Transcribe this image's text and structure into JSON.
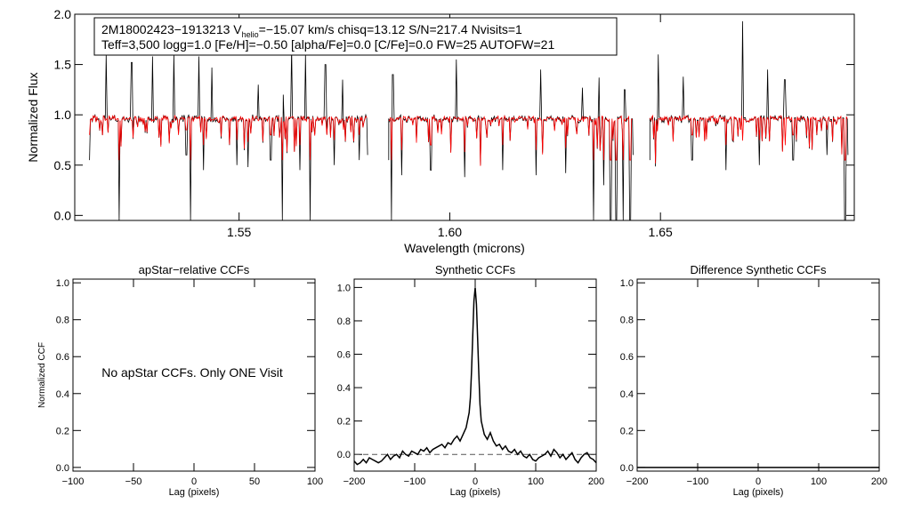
{
  "chart_data": [
    {
      "type": "line",
      "panel": "spectrum",
      "xlabel": "Wavelength (microns)",
      "ylabel": "Normalized Flux",
      "xlim": [
        1.511,
        1.696
      ],
      "ylim": [
        -0.05,
        2.0
      ],
      "x_ticks": [
        "1.55",
        "1.60",
        "1.65"
      ],
      "x_tick_values": [
        1.55,
        1.6,
        1.65
      ],
      "y_ticks": [
        "0.0",
        "0.5",
        "1.0",
        "1.5",
        "2.0"
      ],
      "y_tick_values": [
        0.0,
        0.5,
        1.0,
        1.5,
        2.0
      ],
      "info_line1_prefix": "2M18002423−1913213  V",
      "info_line1_sub": "helio",
      "info_line1_suffix": "=−15.07 km/s  chisq=13.12  S/N=217.4  Nvisits=1",
      "info_line2": "Teff=3,500 logg=1.0 [Fe/H]=−0.50 [alpha/Fe]=0.0 [C/Fe]=0.0 FW=25 AUTOFW=21",
      "chips": [
        [
          1.5145,
          1.5805
        ],
        [
          1.5855,
          1.6435
        ],
        [
          1.6475,
          1.6945
        ]
      ],
      "series": [
        {
          "name": "observed",
          "color": "#000000"
        },
        {
          "name": "model",
          "color": "#ff0000"
        }
      ],
      "spikes": [
        {
          "x": 1.5185,
          "y": 1.6
        },
        {
          "x": 1.5245,
          "y": 1.52
        },
        {
          "x": 1.5295,
          "y": 1.58
        },
        {
          "x": 1.5345,
          "y": 1.6
        },
        {
          "x": 1.5405,
          "y": 1.58
        },
        {
          "x": 1.5435,
          "y": 1.47
        },
        {
          "x": 1.5545,
          "y": 1.3
        },
        {
          "x": 1.5575,
          "y": 1.35
        },
        {
          "x": 1.5605,
          "y": 1.2
        },
        {
          "x": 1.5625,
          "y": 1.68
        },
        {
          "x": 1.5658,
          "y": 1.6
        },
        {
          "x": 1.5705,
          "y": 1.5
        },
        {
          "x": 1.5745,
          "y": 1.35
        },
        {
          "x": 1.5865,
          "y": 1.4
        },
        {
          "x": 1.6015,
          "y": 1.55
        },
        {
          "x": 1.6215,
          "y": 1.45
        },
        {
          "x": 1.6315,
          "y": 1.27
        },
        {
          "x": 1.6355,
          "y": 1.37
        },
        {
          "x": 1.6395,
          "y": 1.97
        },
        {
          "x": 1.6415,
          "y": 1.25
        },
        {
          "x": 1.6495,
          "y": 1.6
        },
        {
          "x": 1.6555,
          "y": 1.38
        },
        {
          "x": 1.6695,
          "y": 1.93
        },
        {
          "x": 1.6755,
          "y": 1.45
        },
        {
          "x": 1.6795,
          "y": 1.35
        },
        {
          "x": 1.6895,
          "y": 2.0
        }
      ],
      "dips": [
        {
          "x": 1.5145,
          "y": 0.55
        },
        {
          "x": 1.5215,
          "y": -0.05
        },
        {
          "x": 1.5375,
          "y": 0.6
        },
        {
          "x": 1.5385,
          "y": -0.05
        },
        {
          "x": 1.5415,
          "y": 0.45
        },
        {
          "x": 1.5495,
          "y": 0.5
        },
        {
          "x": 1.5522,
          "y": 0.48
        },
        {
          "x": 1.5575,
          "y": 0.55
        },
        {
          "x": 1.5602,
          "y": -0.05
        },
        {
          "x": 1.5645,
          "y": 0.45
        },
        {
          "x": 1.5668,
          "y": -0.05
        },
        {
          "x": 1.5725,
          "y": 0.5
        },
        {
          "x": 1.5785,
          "y": 0.55
        },
        {
          "x": 1.5805,
          "y": -0.05
        },
        {
          "x": 1.5862,
          "y": -0.05
        },
        {
          "x": 1.5885,
          "y": 0.4
        },
        {
          "x": 1.5955,
          "y": 0.45
        },
        {
          "x": 1.6035,
          "y": 0.38
        },
        {
          "x": 1.6125,
          "y": 0.45
        },
        {
          "x": 1.6205,
          "y": 0.4
        },
        {
          "x": 1.6275,
          "y": 0.42
        },
        {
          "x": 1.6342,
          "y": -0.05
        },
        {
          "x": 1.6365,
          "y": 0.3
        },
        {
          "x": 1.6382,
          "y": -0.05
        },
        {
          "x": 1.6395,
          "y": -0.05
        },
        {
          "x": 1.6412,
          "y": -0.05
        },
        {
          "x": 1.6428,
          "y": -0.05
        },
        {
          "x": 1.6575,
          "y": 0.55
        },
        {
          "x": 1.6655,
          "y": 0.45
        },
        {
          "x": 1.6735,
          "y": 0.5
        },
        {
          "x": 1.6815,
          "y": 0.55
        },
        {
          "x": 1.6895,
          "y": 0.6
        },
        {
          "x": 1.6938,
          "y": -0.05
        }
      ]
    },
    {
      "type": "line",
      "panel": "apstar-ccf",
      "title": "apStar−relative CCFs",
      "xlabel": "Lag (pixels)",
      "ylabel": "Normalized CCF",
      "xlim": [
        -100,
        100
      ],
      "ylim": [
        -0.02,
        1.02
      ],
      "x_ticks": [
        "−100",
        "−50",
        "0",
        "50",
        "100"
      ],
      "x_tick_values": [
        -100,
        -50,
        0,
        50,
        100
      ],
      "y_ticks": [
        "0.0",
        "0.2",
        "0.4",
        "0.6",
        "0.8",
        "1.0"
      ],
      "y_tick_values": [
        0.0,
        0.2,
        0.4,
        0.6,
        0.8,
        1.0
      ],
      "annotation": "No apStar CCFs.  Only ONE Visit"
    },
    {
      "type": "line",
      "panel": "synthetic-ccf",
      "title": "Synthetic CCFs",
      "xlabel": "Lag (pixels)",
      "xlim": [
        -200,
        200
      ],
      "ylim": [
        -0.1,
        1.05
      ],
      "x_ticks": [
        "−200",
        "−100",
        "0",
        "100",
        "200"
      ],
      "x_tick_values": [
        -200,
        -100,
        0,
        100,
        200
      ],
      "y_ticks": [
        "0.0",
        "0.2",
        "0.4",
        "0.6",
        "0.8",
        "1.0"
      ],
      "y_tick_values": [
        0.0,
        0.2,
        0.4,
        0.6,
        0.8,
        1.0
      ],
      "baseline": 0.0,
      "ccf_x": [
        -200,
        -195,
        -190,
        -185,
        -180,
        -175,
        -170,
        -165,
        -160,
        -155,
        -150,
        -145,
        -140,
        -135,
        -130,
        -125,
        -120,
        -115,
        -110,
        -105,
        -100,
        -95,
        -90,
        -85,
        -80,
        -75,
        -70,
        -65,
        -60,
        -55,
        -50,
        -45,
        -40,
        -35,
        -30,
        -25,
        -20,
        -15,
        -10,
        -8,
        -6,
        -4,
        -2,
        0,
        2,
        4,
        6,
        8,
        10,
        15,
        20,
        25,
        30,
        35,
        40,
        45,
        50,
        55,
        60,
        65,
        70,
        75,
        80,
        85,
        90,
        95,
        100,
        105,
        110,
        115,
        120,
        125,
        130,
        135,
        140,
        145,
        150,
        155,
        160,
        165,
        170,
        175,
        180,
        185,
        190,
        195,
        200
      ],
      "ccf_y": [
        -0.04,
        -0.06,
        -0.05,
        -0.03,
        -0.05,
        -0.02,
        -0.03,
        -0.04,
        -0.05,
        -0.04,
        -0.02,
        0.0,
        -0.03,
        -0.01,
        0.0,
        -0.02,
        0.02,
        0.0,
        -0.01,
        0.02,
        0.01,
        0.0,
        0.03,
        0.02,
        0.04,
        0.01,
        0.03,
        0.04,
        0.05,
        0.06,
        0.04,
        0.07,
        0.06,
        0.09,
        0.11,
        0.08,
        0.12,
        0.16,
        0.25,
        0.34,
        0.5,
        0.72,
        0.92,
        1.0,
        0.9,
        0.7,
        0.48,
        0.3,
        0.2,
        0.12,
        0.09,
        0.13,
        0.08,
        0.05,
        0.06,
        0.03,
        0.05,
        0.02,
        0.01,
        0.03,
        0.0,
        0.02,
        -0.01,
        -0.02,
        0.0,
        -0.03,
        -0.04,
        -0.02,
        -0.01,
        0.0,
        0.02,
        -0.01,
        0.03,
        0.01,
        -0.02,
        0.0,
        -0.03,
        -0.01,
        0.01,
        -0.03,
        -0.05,
        -0.02,
        0.0,
        0.01,
        -0.02,
        -0.03,
        -0.05
      ]
    },
    {
      "type": "line",
      "panel": "difference-ccf",
      "title": "Difference Synthetic CCFs",
      "xlabel": "Lag (pixels)",
      "xlim": [
        -200,
        200
      ],
      "ylim": [
        -0.02,
        1.02
      ],
      "x_ticks": [
        "−200",
        "−100",
        "0",
        "100",
        "200"
      ],
      "x_tick_values": [
        -200,
        -100,
        0,
        100,
        200
      ],
      "y_ticks": [
        "0.0",
        "0.2",
        "0.4",
        "0.6",
        "0.8",
        "1.0"
      ],
      "y_tick_values": [
        0.0,
        0.2,
        0.4,
        0.6,
        0.8,
        1.0
      ],
      "flat_value": 0.0
    }
  ]
}
